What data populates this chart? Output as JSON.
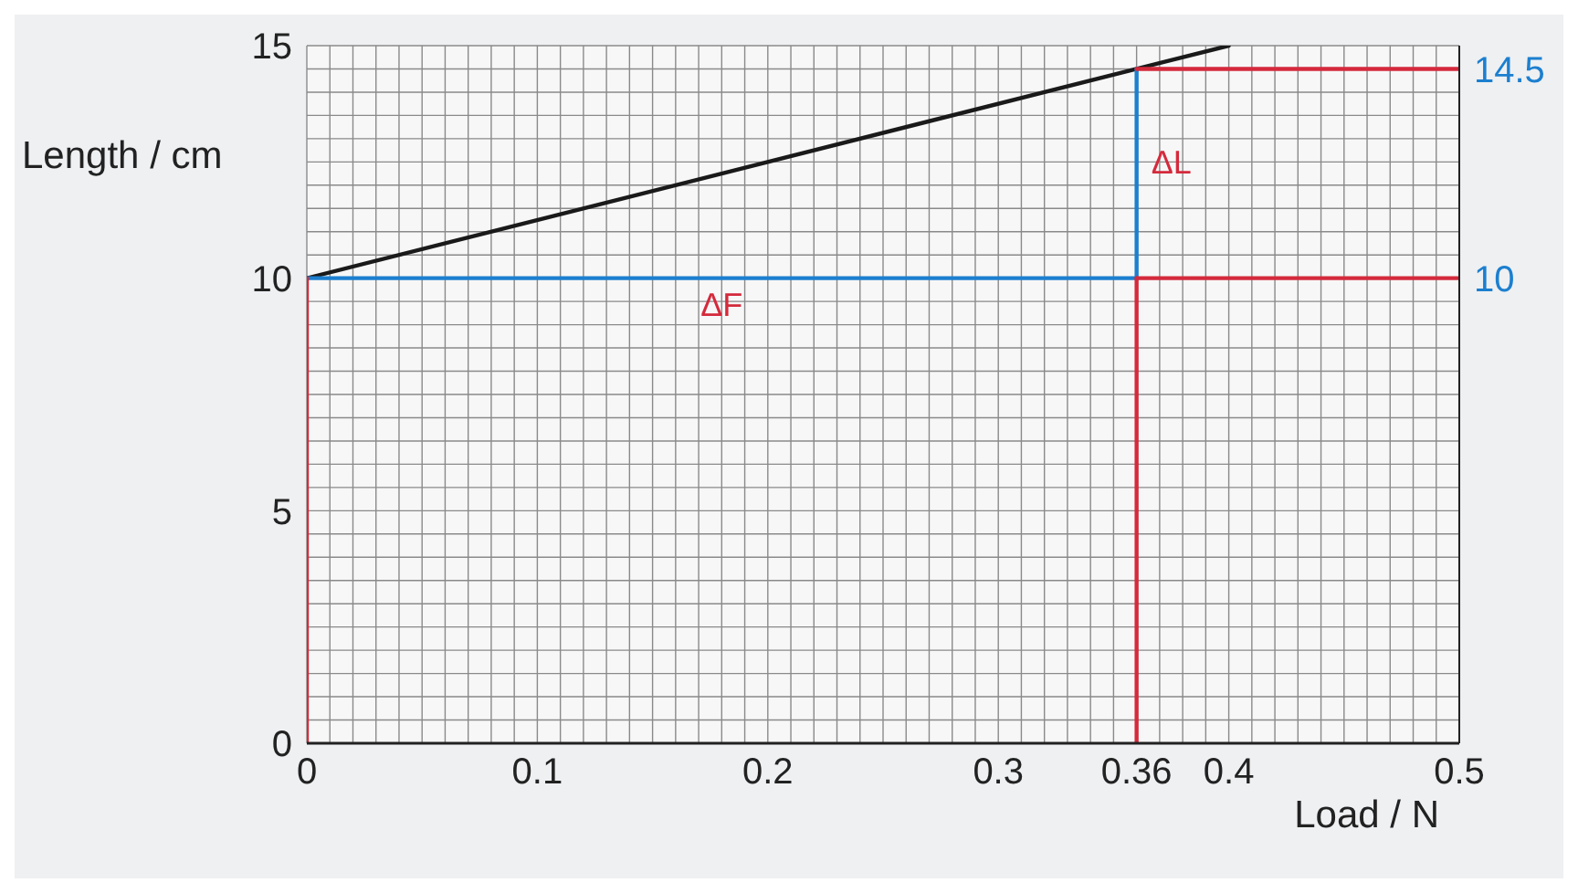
{
  "chart_data": {
    "type": "line",
    "xlabel": "Load / N",
    "ylabel": "Length / cm",
    "xlim": [
      0,
      0.5
    ],
    "ylim": [
      0,
      15
    ],
    "y2lim": [
      0,
      15
    ],
    "xticks": [
      0,
      {
        "value": 0.01,
        "label": null
      },
      {
        "value": 0.02,
        "label": null
      },
      {
        "value": 0.03,
        "label": null
      },
      {
        "value": 0.04,
        "label": null
      },
      {
        "value": 0.05,
        "label": null
      },
      {
        "value": 0.06,
        "label": null
      },
      {
        "value": 0.07,
        "label": null
      },
      {
        "value": 0.08,
        "label": null
      },
      {
        "value": 0.09,
        "label": null
      },
      0.1,
      {
        "value": 0.11,
        "label": null
      },
      {
        "value": 0.12,
        "label": null
      },
      {
        "value": 0.13,
        "label": null
      },
      {
        "value": 0.14,
        "label": null
      },
      {
        "value": 0.15,
        "label": null
      },
      {
        "value": 0.16,
        "label": null
      },
      {
        "value": 0.17,
        "label": null
      },
      {
        "value": 0.18,
        "label": null
      },
      {
        "value": 0.19,
        "label": null
      },
      0.2,
      {
        "value": 0.21,
        "label": null
      },
      {
        "value": 0.22,
        "label": null
      },
      {
        "value": 0.23,
        "label": null
      },
      {
        "value": 0.24,
        "label": null
      },
      {
        "value": 0.25,
        "label": null
      },
      {
        "value": 0.26,
        "label": null
      },
      {
        "value": 0.27,
        "label": null
      },
      {
        "value": 0.28,
        "label": null
      },
      {
        "value": 0.29,
        "label": null
      },
      0.3,
      {
        "value": 0.31,
        "label": null
      },
      {
        "value": 0.32,
        "label": null
      },
      {
        "value": 0.33,
        "label": null
      },
      {
        "value": 0.34,
        "label": null
      },
      {
        "value": 0.35,
        "label": null
      },
      0.36,
      {
        "value": 0.37,
        "label": null
      },
      {
        "value": 0.38,
        "label": null
      },
      {
        "value": 0.39,
        "label": null
      },
      0.4,
      {
        "value": 0.41,
        "label": null
      },
      {
        "value": 0.42,
        "label": null
      },
      {
        "value": 0.43,
        "label": null
      },
      {
        "value": 0.44,
        "label": null
      },
      {
        "value": 0.45,
        "label": null
      },
      {
        "value": 0.46,
        "label": null
      },
      {
        "value": 0.47,
        "label": null
      },
      {
        "value": 0.48,
        "label": null
      },
      {
        "value": 0.49,
        "label": null
      },
      0.5
    ],
    "yticks": [
      0,
      {
        "value": 0.5,
        "label": null
      },
      {
        "value": 1,
        "label": null
      },
      {
        "value": 1.5,
        "label": null
      },
      {
        "value": 2,
        "label": null
      },
      {
        "value": 2.5,
        "label": null
      },
      {
        "value": 3,
        "label": null
      },
      {
        "value": 3.5,
        "label": null
      },
      {
        "value": 4,
        "label": null
      },
      {
        "value": 4.5,
        "label": null
      },
      5,
      {
        "value": 5.5,
        "label": null
      },
      {
        "value": 6,
        "label": null
      },
      {
        "value": 6.5,
        "label": null
      },
      {
        "value": 7,
        "label": null
      },
      {
        "value": 7.5,
        "label": null
      },
      {
        "value": 8,
        "label": null
      },
      {
        "value": 8.5,
        "label": null
      },
      {
        "value": 9,
        "label": null
      },
      {
        "value": 9.5,
        "label": null
      },
      10,
      {
        "value": 10.5,
        "label": null
      },
      {
        "value": 11,
        "label": null
      },
      {
        "value": 11.5,
        "label": null
      },
      {
        "value": 12,
        "label": null
      },
      {
        "value": 12.5,
        "label": null
      },
      {
        "value": 13,
        "label": null
      },
      {
        "value": 13.5,
        "label": null
      },
      {
        "value": 14,
        "label": null
      },
      {
        "value": 14.5,
        "label": null
      },
      15
    ],
    "y2ticks": [
      10,
      14.5
    ],
    "grid": true,
    "legend": false,
    "marker": "none",
    "line_style": "solid",
    "series": [
      {
        "color": "#1a1a1a",
        "x": [
          0,
          0.4
        ],
        "values": [
          10,
          15
        ]
      },
      {
        "color": "#1c7fcf",
        "x": [
          0,
          0.36
        ],
        "values": [
          10,
          10
        ]
      },
      {
        "color": "#1c7fcf",
        "x": [
          0.36,
          0.36
        ],
        "values": [
          10,
          14.5
        ]
      },
      {
        "color": "#d42a3c",
        "x": [
          0,
          0
        ],
        "values": [
          0,
          10
        ]
      },
      {
        "color": "#d42a3c",
        "x": [
          0.36,
          0.36
        ],
        "values": [
          0,
          10
        ]
      },
      {
        "color": "#d42a3c",
        "x": [
          0.36,
          0.5
        ],
        "values": [
          10,
          10
        ]
      },
      {
        "color": "#d42a3c",
        "x": [
          0.36,
          0.5
        ],
        "values": [
          14.5,
          14.5
        ]
      }
    ],
    "annotations": [
      {
        "text": "ΔF",
        "x": 0.18,
        "y": 10
      },
      {
        "text": "ΔL",
        "x": 0.36,
        "y": 12.5
      }
    ]
  }
}
